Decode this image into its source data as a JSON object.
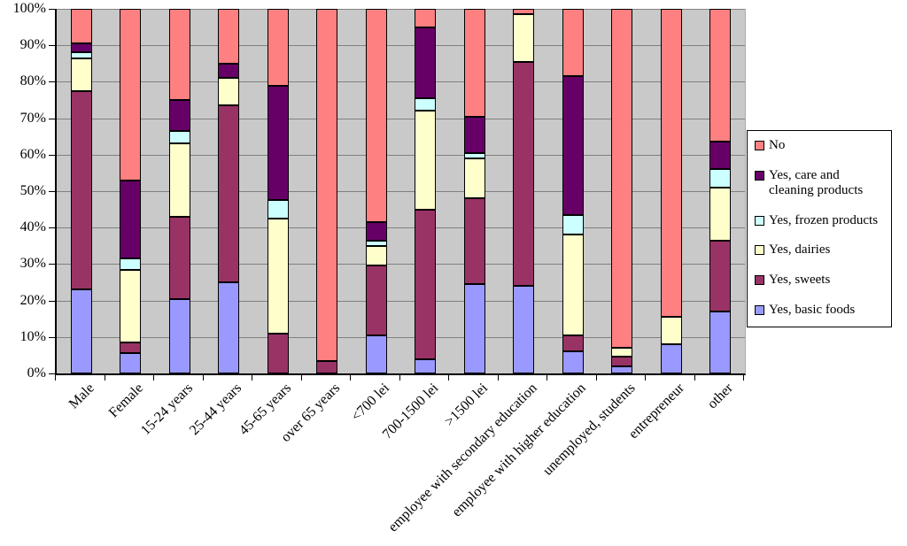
{
  "chart_data": {
    "type": "bar",
    "variant": "stacked-100-percent-column",
    "title": "",
    "xlabel": "",
    "ylabel": "",
    "ylim": [
      0,
      100
    ],
    "grid": true,
    "plot_background": "#c9c9c9",
    "gridline_color": "#808080",
    "legend_position": "right",
    "yticks": [
      "100%",
      "90%",
      "80%",
      "70%",
      "60%",
      "50%",
      "40%",
      "30%",
      "20%",
      "10%",
      "0%"
    ],
    "categories": [
      "Male",
      "Female",
      "15-24 years",
      "25-44 years",
      "45-65  years",
      "over 65 years",
      "<700 lei",
      "700-1500 lei",
      ">1500 lei",
      "employee with secondary education",
      "employee with higher education",
      "unemployed, students",
      "entrepreneur",
      "other"
    ],
    "series": [
      {
        "name": "Yes, basic foods",
        "color": "#9999FF",
        "values": [
          23,
          5.5,
          20.5,
          25,
          0,
          0,
          10.5,
          4,
          24.5,
          24,
          6,
          2,
          8,
          17
        ]
      },
      {
        "name": "Yes, sweets",
        "color": "#993366",
        "values": [
          54.5,
          3,
          22.5,
          48.5,
          11,
          3.5,
          19,
          41,
          23.5,
          61.5,
          4.5,
          2.5,
          0,
          19.5
        ]
      },
      {
        "name": "Yes, dairies",
        "color": "#FFFFCC",
        "values": [
          9,
          20,
          20,
          7.5,
          31.5,
          0,
          5.5,
          27,
          11,
          13,
          27.5,
          2.5,
          7.5,
          14.5
        ]
      },
      {
        "name": "Yes, frozen products",
        "color": "#CCFFFF",
        "values": [
          1.5,
          3,
          3.5,
          0,
          5,
          0,
          1.5,
          3.5,
          1.5,
          0,
          5.5,
          0,
          0,
          5
        ]
      },
      {
        "name": "Yes, care and cleaning products",
        "color": "#660066",
        "values": [
          2.5,
          21.5,
          8.5,
          4,
          31.5,
          0,
          5,
          19.5,
          10,
          0,
          38,
          0,
          0,
          7.5
        ]
      },
      {
        "name": "No",
        "color": "#FF8080",
        "values": [
          9.5,
          47,
          25,
          15,
          21,
          96.5,
          58.5,
          5,
          29.5,
          1.5,
          18.5,
          93,
          84.5,
          36.5
        ]
      }
    ],
    "legend_order": [
      "No",
      "Yes, care and cleaning products",
      "Yes, frozen products",
      "Yes, dairies",
      "Yes, sweets",
      "Yes, basic foods"
    ]
  }
}
